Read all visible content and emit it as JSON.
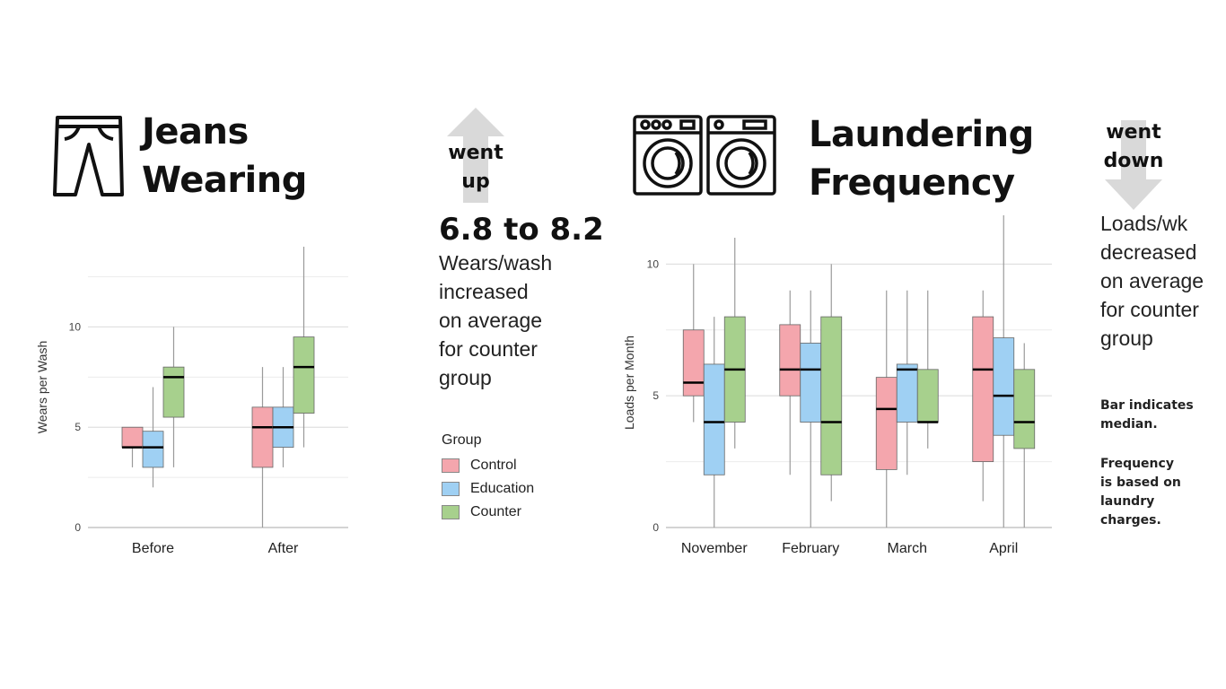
{
  "left_panel": {
    "title_line1": "Jeans",
    "title_line2": "Wearing",
    "icon": "jeans-icon",
    "arrow_label_line1": "went",
    "arrow_label_line2": "up",
    "arrow_direction": "up",
    "change_text": "6.8 to 8.2",
    "description_lines": [
      "Wears/wash",
      "increased",
      "on average",
      "for counter",
      "group"
    ]
  },
  "right_panel": {
    "title_line1": "Laundering",
    "title_line2": "Frequency",
    "icon": "washing-machine-icon",
    "arrow_label_line1": "went",
    "arrow_label_line2": "down",
    "arrow_direction": "down",
    "description_lines": [
      "Loads/wk",
      "decreased",
      "on average",
      "for counter",
      "group"
    ],
    "note1_lines": [
      "Bar indicates",
      "median."
    ],
    "note2_lines": [
      "Frequency",
      "is based on",
      "laundry",
      "charges."
    ]
  },
  "legend": {
    "title": "Group",
    "items": [
      {
        "label": "Control",
        "color": "#f4a6ad"
      },
      {
        "label": "Education",
        "color": "#9fd0f3"
      },
      {
        "label": "Counter",
        "color": "#a7d08d"
      }
    ]
  },
  "chart_data": [
    {
      "type": "box",
      "ylabel": "Wears per Wash",
      "ylim": [
        0,
        14
      ],
      "yticks": [
        0,
        5,
        10
      ],
      "grid": true,
      "categories": [
        "Before",
        "After"
      ],
      "series": [
        {
          "name": "Control",
          "color": "#f4a6ad",
          "boxes": [
            {
              "min": 3,
              "q1": 4,
              "median": 4,
              "q3": 5,
              "max": 5
            },
            {
              "min": 0,
              "q1": 3,
              "median": 5,
              "q3": 6,
              "max": 8
            }
          ]
        },
        {
          "name": "Education",
          "color": "#9fd0f3",
          "boxes": [
            {
              "min": 2,
              "q1": 3,
              "median": 4,
              "q3": 4.8,
              "max": 7
            },
            {
              "min": 3,
              "q1": 4,
              "median": 5,
              "q3": 6,
              "max": 8
            }
          ]
        },
        {
          "name": "Counter",
          "color": "#a7d08d",
          "boxes": [
            {
              "min": 3,
              "q1": 5.5,
              "median": 7.5,
              "q3": 8,
              "max": 10
            },
            {
              "min": 4,
              "q1": 5.7,
              "median": 8,
              "q3": 9.5,
              "max": 14
            }
          ]
        }
      ]
    },
    {
      "type": "box",
      "ylabel": "Loads per Month",
      "ylim": [
        0,
        11
      ],
      "yticks": [
        0,
        5,
        10
      ],
      "grid": true,
      "categories": [
        "November",
        "February",
        "March",
        "April"
      ],
      "series": [
        {
          "name": "Control",
          "color": "#f4a6ad",
          "boxes": [
            {
              "min": 4,
              "q1": 5,
              "median": 5.5,
              "q3": 7.5,
              "max": 10
            },
            {
              "min": 2,
              "q1": 5,
              "median": 6,
              "q3": 7.7,
              "max": 9
            },
            {
              "min": 0,
              "q1": 2.2,
              "median": 4.5,
              "q3": 5.7,
              "max": 9
            },
            {
              "min": 1,
              "q1": 2.5,
              "median": 6,
              "q3": 8,
              "max": 9
            }
          ]
        },
        {
          "name": "Education",
          "color": "#9fd0f3",
          "boxes": [
            {
              "min": 0,
              "q1": 2,
              "median": 4,
              "q3": 6.2,
              "max": 8
            },
            {
              "min": 0,
              "q1": 4,
              "median": 6,
              "q3": 7,
              "max": 9
            },
            {
              "min": 2,
              "q1": 4,
              "median": 6,
              "q3": 6.2,
              "max": 9
            },
            {
              "min": 0,
              "q1": 3.5,
              "median": 5,
              "q3": 7.2,
              "max": 12
            }
          ]
        },
        {
          "name": "Counter",
          "color": "#a7d08d",
          "boxes": [
            {
              "min": 3,
              "q1": 4,
              "median": 6,
              "q3": 8,
              "max": 11
            },
            {
              "min": 1,
              "q1": 2,
              "median": 4,
              "q3": 8,
              "max": 10
            },
            {
              "min": 3,
              "q1": 4,
              "median": 4,
              "q3": 6,
              "max": 9
            },
            {
              "min": 0,
              "q1": 3,
              "median": 4,
              "q3": 6,
              "max": 7
            }
          ]
        }
      ]
    }
  ]
}
